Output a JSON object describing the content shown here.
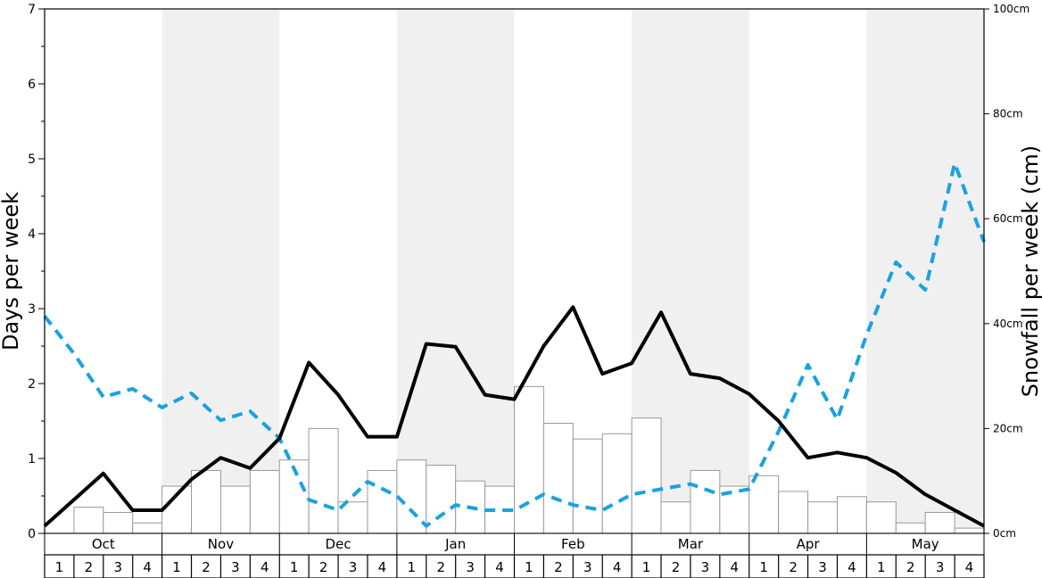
{
  "chart_data": {
    "type": "bar",
    "title": "",
    "ylabel": "Days per week",
    "y2label": "Snowfall per week (cm)",
    "ylim": [
      0,
      7
    ],
    "y2lim": [
      0,
      100
    ],
    "y_ticks": [
      "0",
      "1",
      "2",
      "3",
      "4",
      "5",
      "6",
      "7"
    ],
    "y2_ticks": [
      "0cm",
      "20cm",
      "40cm",
      "60cm",
      "80cm",
      "100cm"
    ],
    "months": [
      "Oct",
      "Nov",
      "Dec",
      "Jan",
      "Feb",
      "Mar",
      "Apr",
      "May"
    ],
    "week_labels": [
      "1",
      "2",
      "3",
      "4"
    ],
    "shaded_months": [
      "Nov",
      "Jan",
      "Mar",
      "May"
    ],
    "colors": {
      "bars": "#ffffff",
      "bar_stroke": "#999999",
      "solid_line": "#000000",
      "dashed_line": "#1aa1e3",
      "shade": "#f0f0f0"
    },
    "series": [
      {
        "kind": "bar-snowfall-cm",
        "values": [
          0,
          5,
          4,
          2,
          9,
          12,
          9,
          12,
          14,
          20,
          6,
          12,
          14,
          13,
          10,
          9,
          28,
          21,
          18,
          19,
          22,
          6,
          12,
          9,
          11,
          8,
          6,
          7,
          6,
          2,
          4,
          1
        ]
      },
      {
        "kind": "line-solid-days",
        "values": [
          0.1,
          0.45,
          0.8,
          0.31,
          0.31,
          0.72,
          1.01,
          0.87,
          1.27,
          2.28,
          1.85,
          1.29,
          1.29,
          2.53,
          2.49,
          1.85,
          1.79,
          2.5,
          3.02,
          2.13,
          2.27,
          2.95,
          2.13,
          2.07,
          1.86,
          1.5,
          1.01,
          1.08,
          1.01,
          0.81,
          0.52,
          0.31,
          0.1
        ]
      },
      {
        "kind": "line-dashed-days",
        "values": [
          2.9,
          2.4,
          1.82,
          1.93,
          1.68,
          1.87,
          1.51,
          1.63,
          1.27,
          0.45,
          0.31,
          0.69,
          0.5,
          0.1,
          0.38,
          0.31,
          0.31,
          0.52,
          0.38,
          0.31,
          0.52,
          0.59,
          0.66,
          0.52,
          0.59,
          1.36,
          2.25,
          1.52,
          2.65,
          3.62,
          3.25,
          4.94,
          3.89
        ]
      }
    ]
  }
}
